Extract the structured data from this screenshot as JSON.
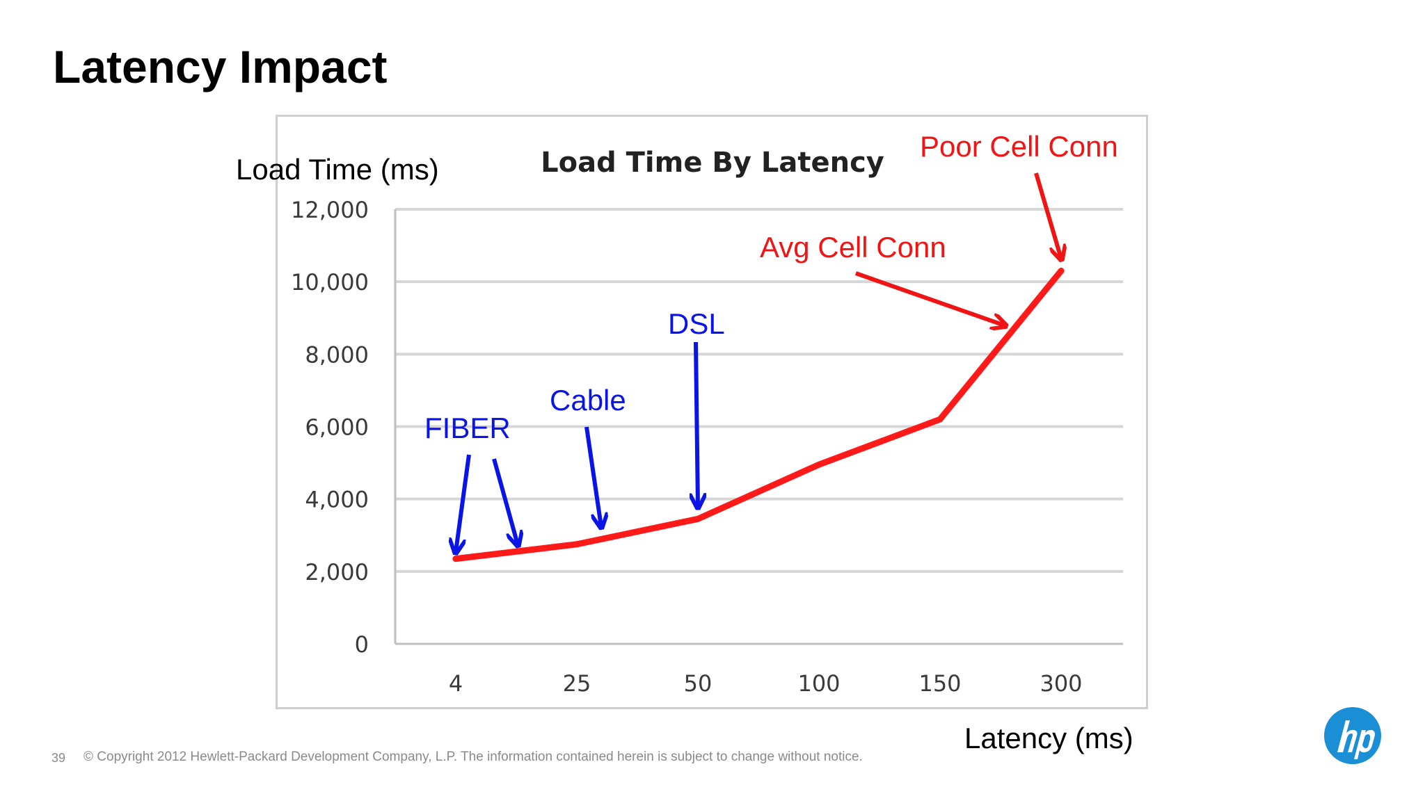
{
  "slide": {
    "title": "Latency Impact",
    "page_number": "39",
    "copyright": "© Copyright 2012 Hewlett-Packard Development Company, L.P.  The information contained herein is subject to change without notice.",
    "logo_icon": "hp-logo-icon",
    "logo_color": "#1a8fd6"
  },
  "chart_data": {
    "type": "line",
    "title": "Load Time By Latency",
    "ylabel": "Load Time (ms)",
    "xlabel": "Latency (ms)",
    "categories": [
      "4",
      "25",
      "50",
      "100",
      "150",
      "300"
    ],
    "y_ticks": [
      "0",
      "2,000",
      "4,000",
      "6,000",
      "8,000",
      "10,000",
      "12,000"
    ],
    "ylim": [
      0,
      12000
    ],
    "grid": true,
    "line_color": "#ff1a1a",
    "series": [
      {
        "values": [
          2350,
          2750,
          3450,
          4950,
          6200,
          10300
        ]
      }
    ],
    "annotations": [
      {
        "label": "FIBER",
        "color": "#0a14e6",
        "arrow_targets": [
          {
            "x": "4",
            "y": 2350
          },
          {
            "x_between": [
              "4",
              "25"
            ],
            "y": 2550
          }
        ]
      },
      {
        "label": "Cable",
        "color": "#0a14e6",
        "arrow_targets": [
          {
            "x_between": [
              "25",
              "50"
            ],
            "y": 3050
          }
        ]
      },
      {
        "label": "DSL",
        "color": "#0a14e6",
        "arrow_targets": [
          {
            "x": "50",
            "y": 3600
          }
        ]
      },
      {
        "label": "Avg Cell Conn",
        "color": "#f01414",
        "arrow_targets": [
          {
            "x_between": [
              "150",
              "300"
            ],
            "y": 8600
          }
        ]
      },
      {
        "label": "Poor Cell Conn",
        "color": "#f01414",
        "arrow_targets": [
          {
            "x": "300",
            "y": 10450
          }
        ]
      }
    ]
  }
}
